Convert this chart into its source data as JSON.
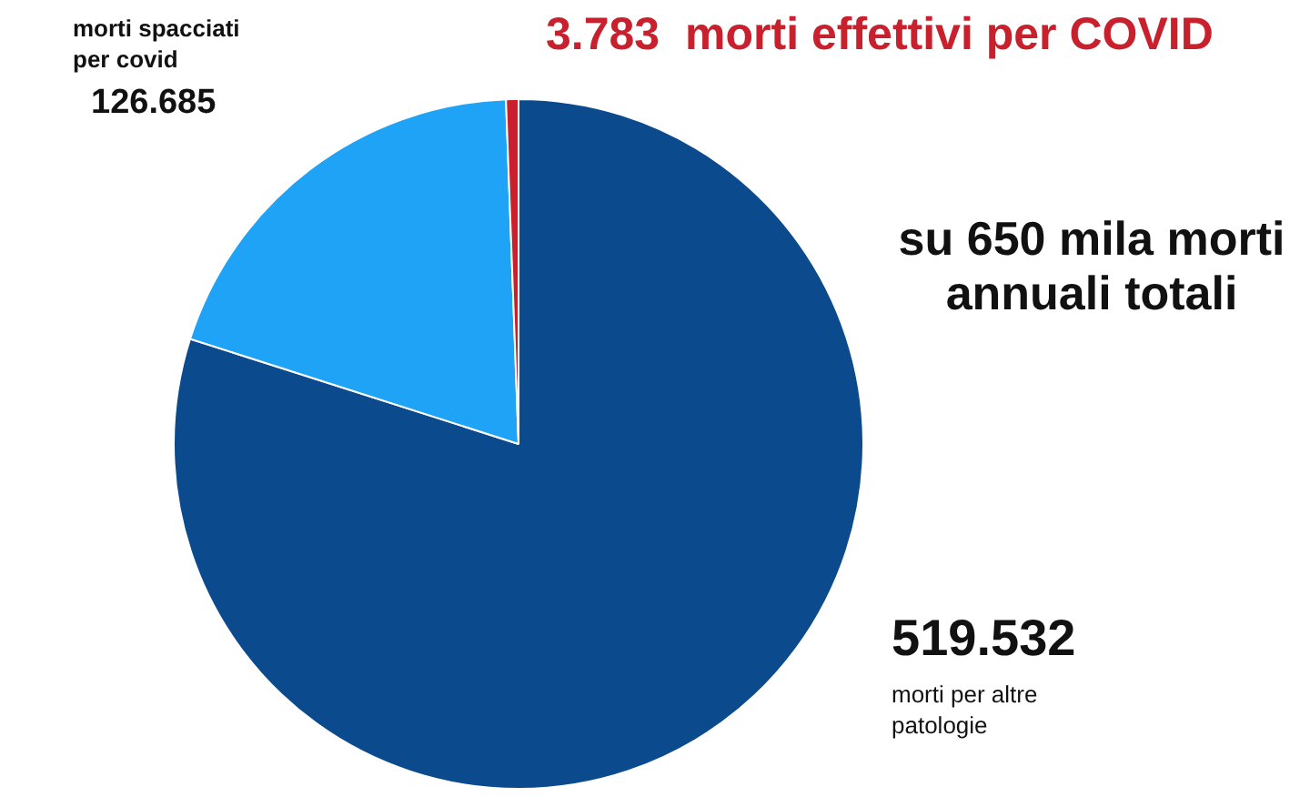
{
  "chart_data": {
    "type": "pie",
    "title": "su 650 mila morti annuali totali",
    "categories": [
      "morti per altre patologie",
      "morti spacciati per covid",
      "morti effettivi per COVID"
    ],
    "values": [
      519532,
      126685,
      3783
    ],
    "colors": [
      "#0b4a8c",
      "#1ea3f7",
      "#c8202c"
    ],
    "value_labels": [
      "519.532",
      "126.685",
      "3.783"
    ]
  }
}
